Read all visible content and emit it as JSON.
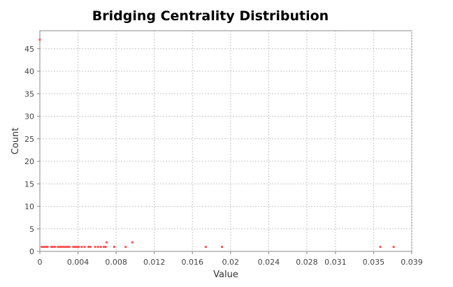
{
  "chart_data": {
    "type": "scatter",
    "title": "Bridging Centrality Distribution",
    "xlabel": "Value",
    "ylabel": "Count",
    "xlim": [
      0,
      0.039
    ],
    "ylim": [
      0,
      49
    ],
    "x_ticks": [
      0,
      0.004,
      0.008,
      0.012,
      0.016,
      0.02,
      0.024,
      0.028,
      0.031,
      0.035,
      0.039
    ],
    "x_tick_labels": [
      "0",
      "0.004",
      "0.008",
      "0.012",
      "0.016",
      "0.02",
      "0.024",
      "0.028",
      "0.031",
      "0.035",
      "0.039"
    ],
    "y_ticks": [
      0,
      5,
      10,
      15,
      20,
      25,
      30,
      35,
      40,
      45
    ],
    "y_tick_labels": [
      "0",
      "5",
      "10",
      "15",
      "20",
      "25",
      "30",
      "35",
      "40",
      "45"
    ],
    "grid": true,
    "legend": "none",
    "point_color": "#ff5555",
    "points": [
      {
        "x": 0.0,
        "y": 47
      },
      {
        "x": 0.0002,
        "y": 1
      },
      {
        "x": 0.0004,
        "y": 1
      },
      {
        "x": 0.0006,
        "y": 1
      },
      {
        "x": 0.0008,
        "y": 1
      },
      {
        "x": 0.0012,
        "y": 1
      },
      {
        "x": 0.0014,
        "y": 1
      },
      {
        "x": 0.0016,
        "y": 1
      },
      {
        "x": 0.0019,
        "y": 1
      },
      {
        "x": 0.0021,
        "y": 1
      },
      {
        "x": 0.0023,
        "y": 1
      },
      {
        "x": 0.0025,
        "y": 1
      },
      {
        "x": 0.0027,
        "y": 1
      },
      {
        "x": 0.0029,
        "y": 1
      },
      {
        "x": 0.0031,
        "y": 1
      },
      {
        "x": 0.0035,
        "y": 1
      },
      {
        "x": 0.0037,
        "y": 1
      },
      {
        "x": 0.0039,
        "y": 1
      },
      {
        "x": 0.0041,
        "y": 1
      },
      {
        "x": 0.0044,
        "y": 1
      },
      {
        "x": 0.0047,
        "y": 1
      },
      {
        "x": 0.0051,
        "y": 1
      },
      {
        "x": 0.0053,
        "y": 1
      },
      {
        "x": 0.0058,
        "y": 1
      },
      {
        "x": 0.0061,
        "y": 1
      },
      {
        "x": 0.0064,
        "y": 1
      },
      {
        "x": 0.0067,
        "y": 1
      },
      {
        "x": 0.0069,
        "y": 1
      },
      {
        "x": 0.007,
        "y": 2
      },
      {
        "x": 0.0078,
        "y": 1
      },
      {
        "x": 0.009,
        "y": 1
      },
      {
        "x": 0.0097,
        "y": 2
      },
      {
        "x": 0.0174,
        "y": 1
      },
      {
        "x": 0.0191,
        "y": 1
      },
      {
        "x": 0.0357,
        "y": 1
      },
      {
        "x": 0.0371,
        "y": 1
      }
    ]
  }
}
